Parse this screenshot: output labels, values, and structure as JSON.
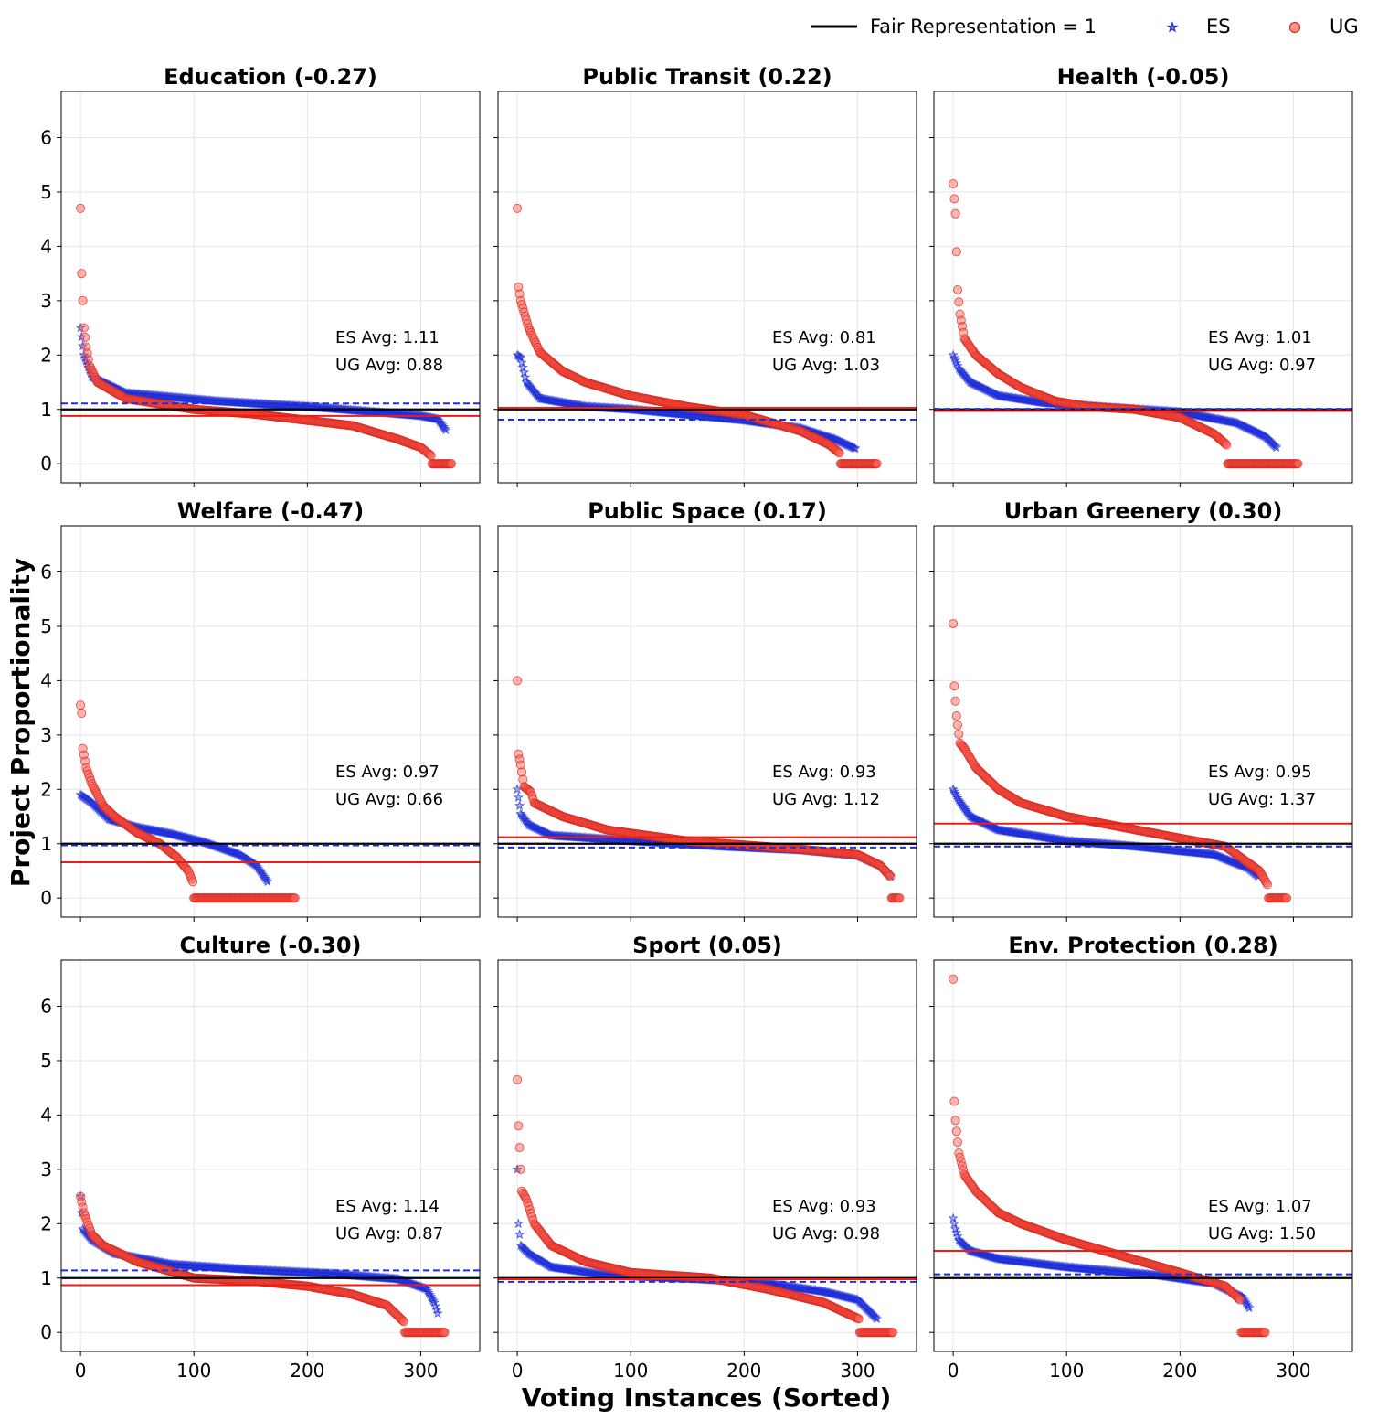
{
  "chart_data": {
    "type": "scatter",
    "xlabel": "Voting Instances (Sorted)",
    "ylabel": "Project Proportionality",
    "xlim": [
      -17,
      352
    ],
    "ylim": [
      -0.35,
      6.85
    ],
    "xticks": [
      0,
      100,
      200,
      300
    ],
    "yticks": [
      0,
      1,
      2,
      3,
      4,
      5,
      6
    ],
    "grid": true,
    "legend": {
      "position": "top-right",
      "entries": [
        {
          "label": "Fair Representation = 1",
          "kind": "line",
          "color": "#000000"
        },
        {
          "label": "ES",
          "kind": "star",
          "color": "#1f2fd8"
        },
        {
          "label": "UG",
          "kind": "circle",
          "color": "#ff3b30"
        }
      ]
    },
    "colors": {
      "es": "#1f2fd8",
      "ug": "#ff3b30",
      "fair": "#000000"
    },
    "panels": [
      {
        "title": "Education (-0.27)",
        "es_avg": 1.11,
        "ug_avg": 0.88,
        "es_avg_label": "ES Avg: 1.11",
        "ug_avg_label": "UG Avg: 0.88",
        "es": {
          "n": 323,
          "profile": [
            [
              0,
              2.5
            ],
            [
              3,
              2.0
            ],
            [
              10,
              1.6
            ],
            [
              40,
              1.3
            ],
            [
              120,
              1.15
            ],
            [
              200,
              1.05
            ],
            [
              260,
              0.95
            ],
            [
              300,
              0.88
            ],
            [
              315,
              0.82
            ],
            [
              322,
              0.62
            ]
          ]
        },
        "ug": {
          "n": 328,
          "zero_start": 310,
          "profile": [
            [
              0,
              4.7
            ],
            [
              1,
              3.5
            ],
            [
              3,
              2.5
            ],
            [
              5,
              2.15
            ],
            [
              8,
              1.8
            ],
            [
              15,
              1.5
            ],
            [
              40,
              1.2
            ],
            [
              100,
              1.0
            ],
            [
              150,
              0.92
            ],
            [
              200,
              0.8
            ],
            [
              240,
              0.7
            ],
            [
              280,
              0.45
            ],
            [
              300,
              0.3
            ],
            [
              309,
              0.15
            ]
          ]
        }
      },
      {
        "title": "Public Transit (0.22)",
        "es_avg": 0.81,
        "ug_avg": 1.03,
        "es_avg_label": "ES Avg: 0.81",
        "ug_avg_label": "UG Avg: 1.03",
        "es": {
          "n": 299,
          "profile": [
            [
              0,
              2.0
            ],
            [
              3,
              1.95
            ],
            [
              8,
              1.5
            ],
            [
              20,
              1.2
            ],
            [
              60,
              1.05
            ],
            [
              100,
              1.0
            ],
            [
              150,
              0.9
            ],
            [
              200,
              0.8
            ],
            [
              250,
              0.65
            ],
            [
              280,
              0.45
            ],
            [
              298,
              0.28
            ]
          ]
        },
        "ug": {
          "n": 318,
          "zero_start": 285,
          "profile": [
            [
              0,
              4.7
            ],
            [
              1,
              3.25
            ],
            [
              3,
              3.0
            ],
            [
              10,
              2.5
            ],
            [
              20,
              2.05
            ],
            [
              40,
              1.7
            ],
            [
              60,
              1.5
            ],
            [
              100,
              1.25
            ],
            [
              150,
              1.05
            ],
            [
              200,
              0.9
            ],
            [
              250,
              0.6
            ],
            [
              275,
              0.35
            ],
            [
              284,
              0.2
            ]
          ]
        }
      },
      {
        "title": "Health (-0.05)",
        "es_avg": 1.01,
        "ug_avg": 0.97,
        "es_avg_label": "ES Avg: 1.01",
        "ug_avg_label": "UG Avg: 0.97",
        "es": {
          "n": 286,
          "profile": [
            [
              0,
              2.0
            ],
            [
              5,
              1.75
            ],
            [
              15,
              1.5
            ],
            [
              40,
              1.25
            ],
            [
              80,
              1.12
            ],
            [
              140,
              1.03
            ],
            [
              200,
              0.95
            ],
            [
              250,
              0.75
            ],
            [
              275,
              0.5
            ],
            [
              285,
              0.3
            ]
          ]
        },
        "ug": {
          "n": 305,
          "zero_start": 242,
          "profile": [
            [
              0,
              5.15
            ],
            [
              2,
              4.6
            ],
            [
              4,
              3.2
            ],
            [
              6,
              2.75
            ],
            [
              10,
              2.3
            ],
            [
              20,
              2.0
            ],
            [
              40,
              1.65
            ],
            [
              60,
              1.4
            ],
            [
              90,
              1.15
            ],
            [
              120,
              1.05
            ],
            [
              160,
              1.0
            ],
            [
              200,
              0.85
            ],
            [
              230,
              0.55
            ],
            [
              241,
              0.35
            ]
          ]
        }
      },
      {
        "title": "Welfare (-0.47)",
        "es_avg": 0.97,
        "ug_avg": 0.66,
        "es_avg_label": "ES Avg: 0.97",
        "ug_avg_label": "UG Avg: 0.66",
        "es": {
          "n": 166,
          "profile": [
            [
              0,
              1.9
            ],
            [
              10,
              1.75
            ],
            [
              25,
              1.45
            ],
            [
              50,
              1.3
            ],
            [
              80,
              1.18
            ],
            [
              110,
              1.02
            ],
            [
              140,
              0.8
            ],
            [
              155,
              0.6
            ],
            [
              165,
              0.3
            ]
          ]
        },
        "ug": {
          "n": 190,
          "zero_start": 100,
          "profile": [
            [
              0,
              3.55
            ],
            [
              1,
              3.4
            ],
            [
              2,
              2.75
            ],
            [
              5,
              2.4
            ],
            [
              10,
              2.1
            ],
            [
              20,
              1.7
            ],
            [
              30,
              1.5
            ],
            [
              50,
              1.2
            ],
            [
              70,
              1.0
            ],
            [
              85,
              0.75
            ],
            [
              95,
              0.5
            ],
            [
              99,
              0.3
            ]
          ]
        }
      },
      {
        "title": "Public Space (0.17)",
        "es_avg": 0.93,
        "ug_avg": 1.12,
        "es_avg_label": "ES Avg: 0.93",
        "ug_avg_label": "UG Avg: 1.12",
        "es": {
          "n": 330,
          "profile": [
            [
              0,
              2.0
            ],
            [
              3,
              1.55
            ],
            [
              10,
              1.35
            ],
            [
              30,
              1.15
            ],
            [
              100,
              1.05
            ],
            [
              180,
              0.95
            ],
            [
              250,
              0.88
            ],
            [
              300,
              0.78
            ],
            [
              320,
              0.6
            ],
            [
              329,
              0.4
            ]
          ]
        },
        "ug": {
          "n": 338,
          "zero_start": 330,
          "profile": [
            [
              0,
              4.0
            ],
            [
              1,
              2.65
            ],
            [
              3,
              2.45
            ],
            [
              6,
              2.05
            ],
            [
              12,
              1.95
            ],
            [
              15,
              1.75
            ],
            [
              40,
              1.5
            ],
            [
              80,
              1.25
            ],
            [
              150,
              1.05
            ],
            [
              250,
              0.9
            ],
            [
              300,
              0.8
            ],
            [
              320,
              0.6
            ],
            [
              329,
              0.4
            ]
          ]
        }
      },
      {
        "title": "Urban Greenery (0.30)",
        "es_avg": 0.95,
        "ug_avg": 1.37,
        "es_avg_label": "ES Avg: 0.95",
        "ug_avg_label": "UG Avg: 1.37",
        "es": {
          "n": 270,
          "profile": [
            [
              0,
              2.0
            ],
            [
              5,
              1.8
            ],
            [
              15,
              1.5
            ],
            [
              40,
              1.25
            ],
            [
              100,
              1.05
            ],
            [
              160,
              0.95
            ],
            [
              230,
              0.8
            ],
            [
              260,
              0.55
            ],
            [
              269,
              0.4
            ]
          ]
        },
        "ug": {
          "n": 295,
          "zero_start": 278,
          "profile": [
            [
              0,
              5.05
            ],
            [
              1,
              3.9
            ],
            [
              3,
              3.35
            ],
            [
              6,
              2.85
            ],
            [
              10,
              2.75
            ],
            [
              20,
              2.4
            ],
            [
              40,
              2.0
            ],
            [
              60,
              1.75
            ],
            [
              100,
              1.5
            ],
            [
              150,
              1.3
            ],
            [
              200,
              1.1
            ],
            [
              240,
              0.95
            ],
            [
              270,
              0.5
            ],
            [
              277,
              0.25
            ]
          ]
        }
      },
      {
        "title": "Culture (-0.30)",
        "es_avg": 1.14,
        "ug_avg": 0.87,
        "es_avg_label": "ES Avg: 1.14",
        "ug_avg_label": "UG Avg: 0.87",
        "es": {
          "n": 316,
          "profile": [
            [
              0,
              2.5
            ],
            [
              2,
              1.9
            ],
            [
              10,
              1.7
            ],
            [
              30,
              1.45
            ],
            [
              80,
              1.25
            ],
            [
              150,
              1.15
            ],
            [
              220,
              1.08
            ],
            [
              280,
              0.98
            ],
            [
              305,
              0.8
            ],
            [
              312,
              0.55
            ],
            [
              315,
              0.35
            ]
          ]
        },
        "ug": {
          "n": 322,
          "zero_start": 286,
          "profile": [
            [
              0,
              2.5
            ],
            [
              3,
              2.2
            ],
            [
              10,
              1.8
            ],
            [
              20,
              1.6
            ],
            [
              50,
              1.3
            ],
            [
              100,
              1.0
            ],
            [
              150,
              0.95
            ],
            [
              200,
              0.85
            ],
            [
              240,
              0.7
            ],
            [
              270,
              0.5
            ],
            [
              285,
              0.2
            ]
          ]
        }
      },
      {
        "title": "Sport (0.05)",
        "es_avg": 0.93,
        "ug_avg": 0.98,
        "es_avg_label": "ES Avg: 0.93",
        "ug_avg_label": "UG Avg: 0.98",
        "es": {
          "n": 318,
          "profile": [
            [
              0,
              3.0
            ],
            [
              1,
              2.0
            ],
            [
              3,
              1.6
            ],
            [
              10,
              1.45
            ],
            [
              30,
              1.2
            ],
            [
              80,
              1.05
            ],
            [
              160,
              0.98
            ],
            [
              220,
              0.9
            ],
            [
              270,
              0.75
            ],
            [
              300,
              0.6
            ],
            [
              317,
              0.25
            ]
          ]
        },
        "ug": {
          "n": 332,
          "zero_start": 302,
          "profile": [
            [
              0,
              4.65
            ],
            [
              1,
              3.8
            ],
            [
              2,
              3.4
            ],
            [
              4,
              2.6
            ],
            [
              8,
              2.45
            ],
            [
              15,
              2.0
            ],
            [
              30,
              1.6
            ],
            [
              60,
              1.3
            ],
            [
              100,
              1.1
            ],
            [
              170,
              1.0
            ],
            [
              220,
              0.8
            ],
            [
              270,
              0.55
            ],
            [
              301,
              0.25
            ]
          ]
        }
      },
      {
        "title": "Env. Protection (0.28)",
        "es_avg": 1.07,
        "ug_avg": 1.5,
        "es_avg_label": "ES Avg: 1.07",
        "ug_avg_label": "UG Avg: 1.50",
        "es": {
          "n": 262,
          "profile": [
            [
              0,
              2.1
            ],
            [
              2,
              1.9
            ],
            [
              5,
              1.7
            ],
            [
              15,
              1.5
            ],
            [
              40,
              1.35
            ],
            [
              100,
              1.2
            ],
            [
              180,
              1.05
            ],
            [
              230,
              0.9
            ],
            [
              255,
              0.65
            ],
            [
              261,
              0.45
            ]
          ]
        },
        "ug": {
          "n": 276,
          "zero_start": 254,
          "profile": [
            [
              0,
              6.5
            ],
            [
              1,
              4.25
            ],
            [
              2,
              3.9
            ],
            [
              5,
              3.3
            ],
            [
              10,
              2.9
            ],
            [
              20,
              2.6
            ],
            [
              40,
              2.2
            ],
            [
              60,
              2.0
            ],
            [
              100,
              1.7
            ],
            [
              150,
              1.4
            ],
            [
              200,
              1.1
            ],
            [
              240,
              0.85
            ],
            [
              253,
              0.6
            ]
          ]
        }
      }
    ]
  }
}
